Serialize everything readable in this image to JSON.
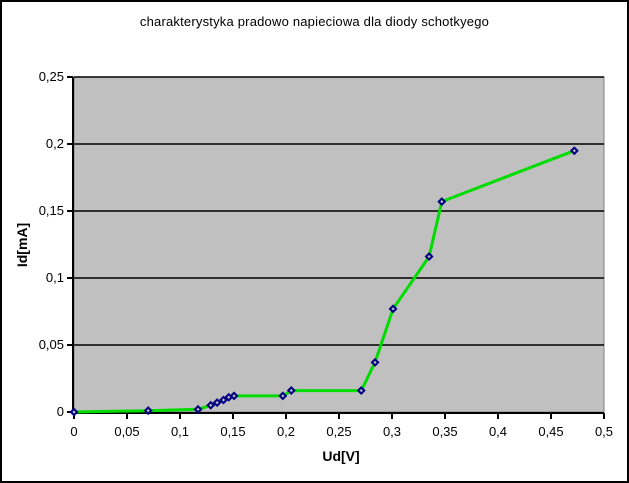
{
  "window": {
    "background": "#FFFFFF",
    "border_color": "#000000"
  },
  "chart_data": {
    "type": "line",
    "title": "charakterystyka pradowo napieciowa dla diody schotkyego",
    "xlabel": "Ud[V]",
    "ylabel": "Id[mA]",
    "xlim": [
      0,
      0.5
    ],
    "ylim": [
      0,
      0.25
    ],
    "xticks": [
      0,
      0.05,
      0.1,
      0.15,
      0.2,
      0.25,
      0.3,
      0.35,
      0.4,
      0.45,
      0.5
    ],
    "xtick_labels": [
      "0",
      "0,05",
      "0,1",
      "0,15",
      "0,2",
      "0,25",
      "0,3",
      "0,35",
      "0,4",
      "0,45",
      "0,5"
    ],
    "yticks": [
      0,
      0.05,
      0.1,
      0.15,
      0.2,
      0.25
    ],
    "ytick_labels": [
      "0",
      "0,05",
      "0,1",
      "0,15",
      "0,2",
      "0,25"
    ],
    "grid": "horizontal",
    "legend_position": "none",
    "plot_bg_color": "#C0C0C0",
    "plot_border_color": "#808080",
    "gridline_color": "#000000",
    "axis_color": "#000000",
    "line_color": "#00DC00",
    "marker": "diamond",
    "marker_color": "#000080",
    "points": [
      {
        "x": 0,
        "y": 0
      },
      {
        "x": 0.07,
        "y": 0.001
      },
      {
        "x": 0.117,
        "y": 0.002
      },
      {
        "x": 0.129,
        "y": 0.005
      },
      {
        "x": 0.135,
        "y": 0.007
      },
      {
        "x": 0.141,
        "y": 0.009
      },
      {
        "x": 0.146,
        "y": 0.011
      },
      {
        "x": 0.151,
        "y": 0.012
      },
      {
        "x": 0.197,
        "y": 0.012
      },
      {
        "x": 0.205,
        "y": 0.016
      },
      {
        "x": 0.271,
        "y": 0.016
      },
      {
        "x": 0.284,
        "y": 0.037
      },
      {
        "x": 0.301,
        "y": 0.077
      },
      {
        "x": 0.335,
        "y": 0.116
      },
      {
        "x": 0.347,
        "y": 0.157
      },
      {
        "x": 0.472,
        "y": 0.195
      }
    ]
  }
}
